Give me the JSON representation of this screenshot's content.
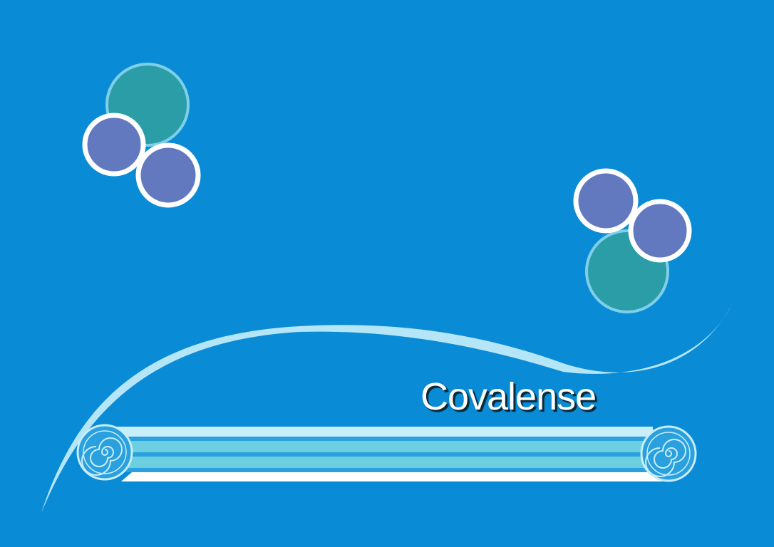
{
  "brand": {
    "name": "Covalense"
  },
  "colors": {
    "background": "#0a8bd6",
    "atom_teal": "#2a9da6",
    "atom_teal_ring": "#7ed0ea",
    "atom_purple": "#6279c0",
    "atom_ring": "#ffffff",
    "wave": "#b5e6f7",
    "banner_light": "#c8eefa",
    "banner_mid": "#6ccfe0",
    "banner_stripe": "#2aa0df"
  },
  "icons": {
    "molecule_left": "molecule-icon",
    "molecule_right": "molecule-icon",
    "scroll_spiral": "spiral-icon"
  }
}
